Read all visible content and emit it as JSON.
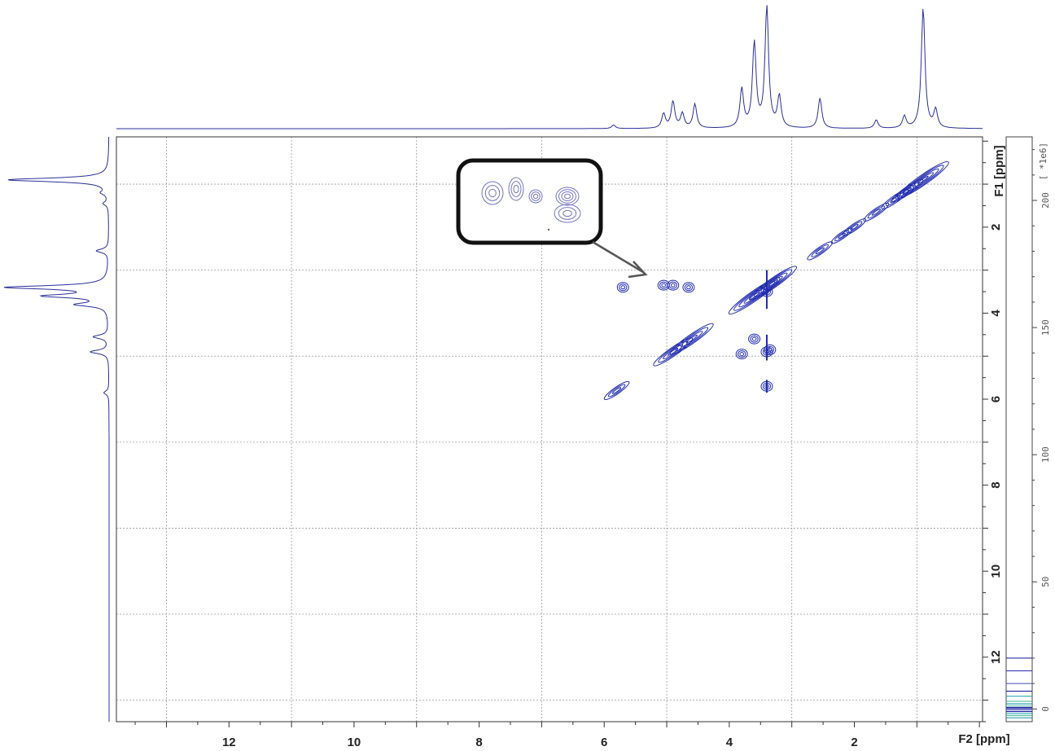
{
  "chart_data": {
    "type": "contour",
    "x_axis": {
      "label": "F2 [ppm]",
      "ticks": [
        12,
        10,
        8,
        6,
        4,
        2
      ],
      "range": [
        13.8,
        -0.05
      ],
      "reversed": true
    },
    "y_axis": {
      "label": "F1 [ppm]",
      "ticks": [
        2,
        4,
        6,
        8,
        10,
        12
      ],
      "range": [
        -0.1,
        13.5
      ],
      "reversed": true
    },
    "scale_bar": {
      "label": "[ *1e6]",
      "ticks": [
        200,
        150,
        100,
        50,
        0
      ],
      "range": [
        -5,
        225
      ],
      "level_colors": [
        "#2b2fa0",
        "#3b3fb0",
        "#5a5ec0",
        "#2020a0",
        "#40b0c0",
        "#60c0a0",
        "#30a0b0",
        "#7fd0c0"
      ]
    },
    "grid": true,
    "colors": {
      "contour": "#1f2ab0",
      "spectrum": "#2a2f9a",
      "grid": "#9a9a9a",
      "frame": "#333333"
    },
    "diagonal_peaks": [
      {
        "shift": 0.9,
        "rel_intensity": 1.0
      },
      {
        "shift": 1.15,
        "rel_intensity": 0.5
      },
      {
        "shift": 1.35,
        "rel_intensity": 0.4
      },
      {
        "shift": 1.65,
        "rel_intensity": 0.35
      },
      {
        "shift": 2.0,
        "rel_intensity": 0.3
      },
      {
        "shift": 2.2,
        "rel_intensity": 0.25
      },
      {
        "shift": 2.55,
        "rel_intensity": 0.35
      },
      {
        "shift": 3.3,
        "rel_intensity": 0.9
      },
      {
        "shift": 3.6,
        "rel_intensity": 1.0
      },
      {
        "shift": 4.6,
        "rel_intensity": 0.8
      },
      {
        "shift": 4.9,
        "rel_intensity": 0.7
      },
      {
        "shift": 5.8,
        "rel_intensity": 0.35
      }
    ],
    "cross_peaks": [
      {
        "f2": 4.65,
        "f1": 3.4
      },
      {
        "f2": 4.9,
        "f1": 3.35
      },
      {
        "f2": 5.05,
        "f1": 3.35
      },
      {
        "f2": 5.7,
        "f1": 3.4
      },
      {
        "f2": 3.4,
        "f1": 3.5
      },
      {
        "f2": 3.6,
        "f1": 4.6
      },
      {
        "f2": 3.4,
        "f1": 4.9
      },
      {
        "f2": 3.35,
        "f1": 4.85
      },
      {
        "f2": 3.8,
        "f1": 4.95
      },
      {
        "f2": 3.4,
        "f1": 5.7
      }
    ],
    "f2_projection_peaks": [
      {
        "shift": 0.9,
        "height": 1.0
      },
      {
        "shift": 3.4,
        "height": 1.0
      },
      {
        "shift": 3.6,
        "height": 0.7
      },
      {
        "shift": 3.8,
        "height": 0.32
      },
      {
        "shift": 3.2,
        "height": 0.26
      },
      {
        "shift": 4.55,
        "height": 0.2
      },
      {
        "shift": 4.9,
        "height": 0.22
      },
      {
        "shift": 5.05,
        "height": 0.12
      },
      {
        "shift": 4.75,
        "height": 0.12
      },
      {
        "shift": 2.55,
        "height": 0.25
      },
      {
        "shift": 1.65,
        "height": 0.07
      },
      {
        "shift": 1.2,
        "height": 0.1
      },
      {
        "shift": 0.7,
        "height": 0.15
      },
      {
        "shift": 5.85,
        "height": 0.03
      }
    ],
    "f1_projection_peaks": [
      {
        "shift": 0.9,
        "height": 1.0
      },
      {
        "shift": 3.4,
        "height": 1.0
      },
      {
        "shift": 3.6,
        "height": 0.6
      },
      {
        "shift": 3.8,
        "height": 0.3
      },
      {
        "shift": 4.55,
        "height": 0.15
      },
      {
        "shift": 4.9,
        "height": 0.18
      },
      {
        "shift": 2.55,
        "height": 0.12
      },
      {
        "shift": 1.2,
        "height": 0.06
      },
      {
        "shift": 1.45,
        "height": 0.05
      },
      {
        "shift": 5.85,
        "height": 0.05
      }
    ],
    "inset_zoom": {
      "description_target_f2": 4.9,
      "description_target_f1": 3.35
    }
  }
}
